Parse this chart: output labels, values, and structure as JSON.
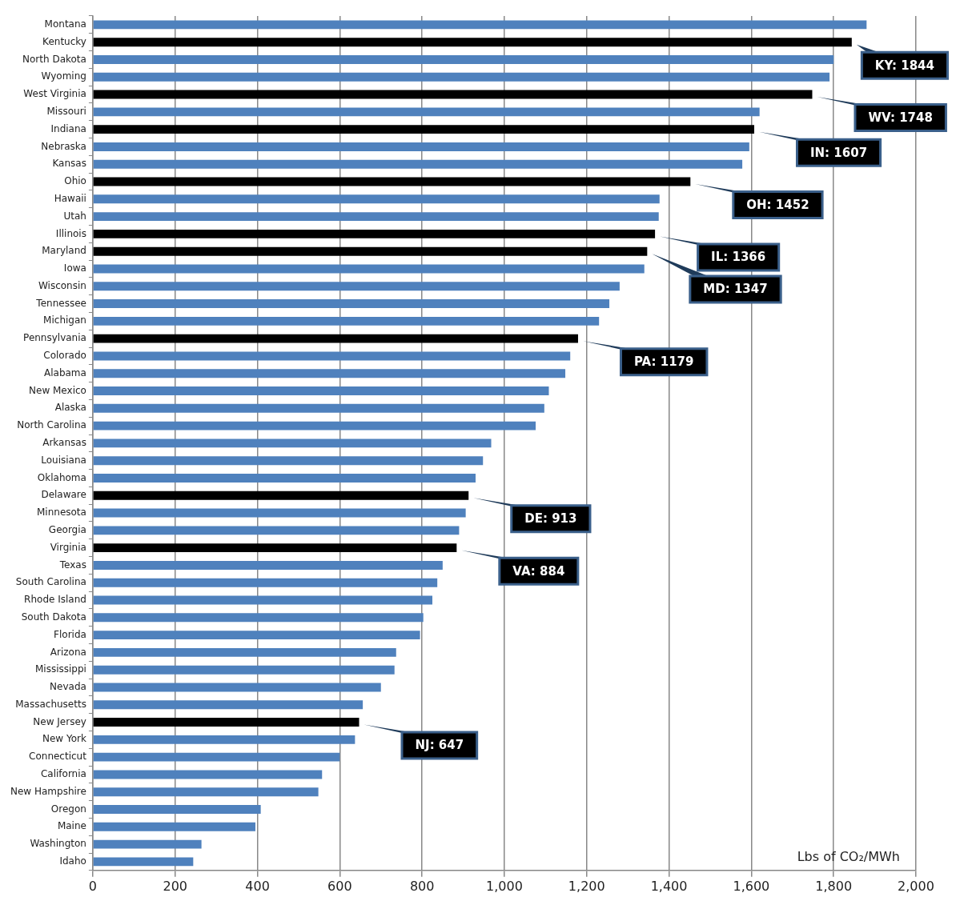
{
  "chart_data": {
    "type": "bar",
    "orientation": "horizontal",
    "xlabel": "Lbs of CO₂/MWh",
    "categories": [
      "Montana",
      "Kentucky",
      "North Dakota",
      "Wyoming",
      "West Virginia",
      "Missouri",
      "Indiana",
      "Nebraska",
      "Kansas",
      "Ohio",
      "Hawaii",
      "Utah",
      "Illinois",
      "Maryland",
      "Iowa",
      "Wisconsin",
      "Tennessee",
      "Michigan",
      "Pennsylvania",
      "Colorado",
      "Alabama",
      "New Mexico",
      "Alaska",
      "North Carolina",
      "Arkansas",
      "Louisiana",
      "Oklahoma",
      "Delaware",
      "Minnesota",
      "Georgia",
      "Virginia",
      "Texas",
      "South Carolina",
      "Rhode Island",
      "South Dakota",
      "Florida",
      "Arizona",
      "Mississippi",
      "Nevada",
      "Massachusetts",
      "New Jersey",
      "New York",
      "Connecticut",
      "California",
      "New Hampshire",
      "Oregon",
      "Maine",
      "Washington",
      "Idaho"
    ],
    "values": [
      1880,
      1844,
      1800,
      1790,
      1748,
      1620,
      1607,
      1595,
      1578,
      1452,
      1377,
      1375,
      1366,
      1347,
      1340,
      1280,
      1255,
      1230,
      1179,
      1160,
      1148,
      1108,
      1097,
      1076,
      968,
      948,
      930,
      913,
      906,
      890,
      884,
      850,
      837,
      825,
      803,
      795,
      737,
      733,
      700,
      656,
      647,
      637,
      600,
      557,
      548,
      408,
      395,
      264,
      244
    ],
    "colors": [
      "#4f81bd",
      "#000000",
      "#4f81bd",
      "#4f81bd",
      "#000000",
      "#4f81bd",
      "#000000",
      "#4f81bd",
      "#4f81bd",
      "#000000",
      "#4f81bd",
      "#4f81bd",
      "#000000",
      "#000000",
      "#4f81bd",
      "#4f81bd",
      "#4f81bd",
      "#4f81bd",
      "#000000",
      "#4f81bd",
      "#4f81bd",
      "#4f81bd",
      "#4f81bd",
      "#4f81bd",
      "#4f81bd",
      "#4f81bd",
      "#4f81bd",
      "#000000",
      "#4f81bd",
      "#4f81bd",
      "#000000",
      "#4f81bd",
      "#4f81bd",
      "#4f81bd",
      "#4f81bd",
      "#4f81bd",
      "#4f81bd",
      "#4f81bd",
      "#4f81bd",
      "#4f81bd",
      "#000000",
      "#4f81bd",
      "#4f81bd",
      "#4f81bd",
      "#4f81bd",
      "#4f81bd",
      "#4f81bd",
      "#4f81bd",
      "#4f81bd"
    ],
    "value_labels": [
      null,
      "KY: 1844",
      null,
      null,
      "WV: 1748",
      null,
      "IN: 1607",
      null,
      null,
      "OH: 1452",
      null,
      null,
      "IL: 1366",
      "MD: 1347",
      null,
      null,
      null,
      null,
      "PA: 1179",
      null,
      null,
      null,
      null,
      null,
      null,
      null,
      null,
      "DE: 913",
      null,
      null,
      "VA: 884",
      null,
      null,
      null,
      null,
      null,
      null,
      null,
      null,
      null,
      "NJ: 647",
      null,
      null,
      null,
      null,
      null,
      null,
      null,
      null
    ],
    "xlim": [
      0,
      2000
    ],
    "xticks": [
      0,
      200,
      400,
      600,
      800,
      {
        "value": 1000,
        "label": "1,000"
      },
      {
        "value": 1200,
        "label": "1,200"
      },
      {
        "value": 1400,
        "label": "1,400"
      },
      {
        "value": 1600,
        "label": "1,600"
      },
      {
        "value": 1800,
        "label": "1,800"
      },
      {
        "value": 2000,
        "label": "2,000"
      }
    ],
    "grid": "x"
  }
}
